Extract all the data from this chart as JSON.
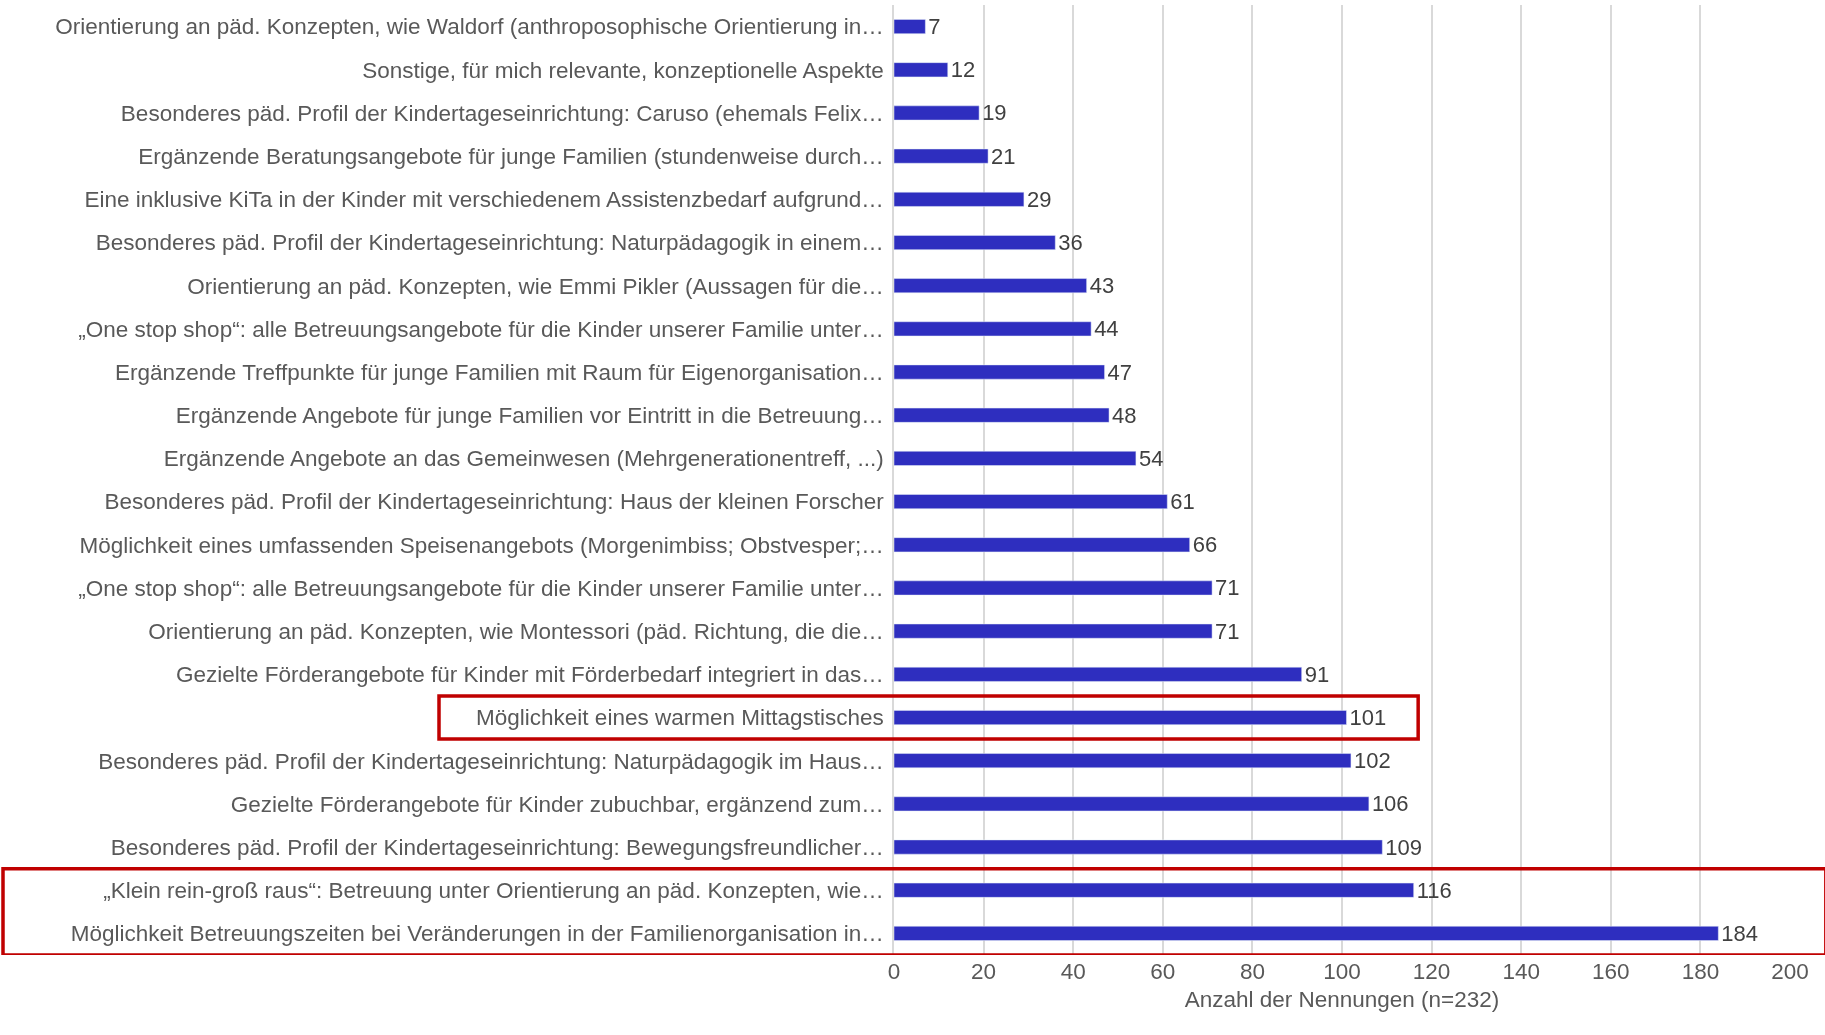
{
  "chart_data": {
    "type": "bar",
    "orientation": "horizontal",
    "xlabel": "Anzahl der Nennungen (n=232)",
    "categories": [
      "Orientierung an päd. Konzepten, wie Waldorf (anthroposophische Orientierung in…",
      "Sonstige, für mich relevante, konzeptionelle Aspekte",
      "Besonderes päd. Profil der Kindertageseinrichtung: Caruso (ehemals Felix…",
      "Ergänzende Beratungsangebote für junge Familien (stundenweise durch…",
      "Eine inklusive KiTa in der Kinder mit verschiedenem Assistenzbedarf aufgrund…",
      "Besonderes päd. Profil der Kindertageseinrichtung: Naturpädagogik in einem…",
      "Orientierung an päd. Konzepten, wie Emmi Pikler (Aussagen für die…",
      "„One stop shop“: alle Betreuungsangebote für die Kinder unserer Familie unter…",
      "Ergänzende Treffpunkte für junge Familien mit Raum für Eigenorganisation…",
      "Ergänzende Angebote für junge Familien vor Eintritt in die Betreuung…",
      "Ergänzende Angebote an das Gemeinwesen (Mehrgenerationentreff, ...)",
      "Besonderes päd. Profil der Kindertageseinrichtung: Haus der kleinen Forscher",
      "Möglichkeit eines umfassenden Speisenangebots (Morgenimbiss; Obstvesper;…",
      "„One stop shop“: alle Betreuungsangebote für die Kinder unserer Familie unter…",
      "Orientierung an päd. Konzepten, wie Montessori (päd. Richtung, die die…",
      "Gezielte Förderangebote für Kinder mit Förderbedarf integriert in das…",
      "Möglichkeit eines warmen Mittagstisches",
      "Besonderes päd. Profil der Kindertageseinrichtung: Naturpädagogik im Haus…",
      "Gezielte Förderangebote für Kinder zubuchbar, ergänzend zum…",
      "Besonderes päd. Profil der Kindertageseinrichtung: Bewegungsfreundlicher…",
      "„Klein rein-groß raus“: Betreuung unter Orientierung an päd. Konzepten, wie…",
      "Möglichkeit Betreuungszeiten bei Veränderungen in der Familienorganisation in…"
    ],
    "values": [
      7,
      12,
      19,
      21,
      29,
      36,
      43,
      44,
      47,
      48,
      54,
      61,
      66,
      71,
      71,
      91,
      101,
      102,
      106,
      109,
      116,
      184
    ],
    "color": "#2e2ebf",
    "data_labels": true,
    "xlim": [
      0,
      200
    ],
    "xticks": [
      0,
      20,
      40,
      60,
      80,
      100,
      120,
      140,
      160,
      180,
      200
    ],
    "grid": "x",
    "legend": false
  }
}
